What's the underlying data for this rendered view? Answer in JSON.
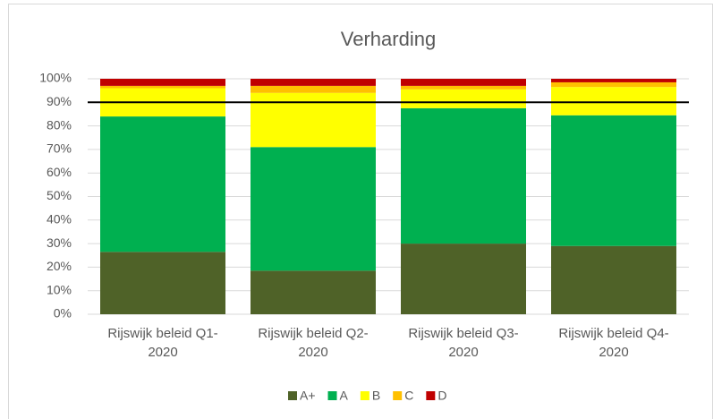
{
  "chart_data": {
    "type": "stacked_bar",
    "title": "Verharding",
    "categories": [
      "Rijswijk beleid Q1-\n2020",
      "Rijswijk beleid Q2-\n2020",
      "Rijswijk beleid Q3-\n2020",
      "Rijswijk beleid Q4-\n2020"
    ],
    "series": [
      {
        "name": "A+",
        "color": "#4f6228",
        "values": [
          26.5,
          18.5,
          30,
          29
        ]
      },
      {
        "name": "A",
        "color": "#00b050",
        "values": [
          57.5,
          52.5,
          57.5,
          55.5
        ]
      },
      {
        "name": "B",
        "color": "#ffff00",
        "values": [
          12,
          23,
          8,
          12
        ]
      },
      {
        "name": "C",
        "color": "#ffc000",
        "values": [
          1,
          3,
          1.5,
          2
        ]
      },
      {
        "name": "D",
        "color": "#c00000",
        "values": [
          3,
          3,
          3,
          1.5
        ]
      }
    ],
    "threshold": 90,
    "ylim": [
      0,
      100
    ],
    "yticks": [
      {
        "value": 0,
        "label": "0%"
      },
      {
        "value": 10,
        "label": "10%"
      },
      {
        "value": 20,
        "label": "20%"
      },
      {
        "value": 30,
        "label": "30%"
      },
      {
        "value": 40,
        "label": "40%"
      },
      {
        "value": 50,
        "label": "50%"
      },
      {
        "value": 60,
        "label": "60%"
      },
      {
        "value": 70,
        "label": "70%"
      },
      {
        "value": 80,
        "label": "80%"
      },
      {
        "value": 90,
        "label": "90%"
      },
      {
        "value": 100,
        "label": "100%"
      }
    ],
    "grid": true,
    "legend": "bottom"
  }
}
